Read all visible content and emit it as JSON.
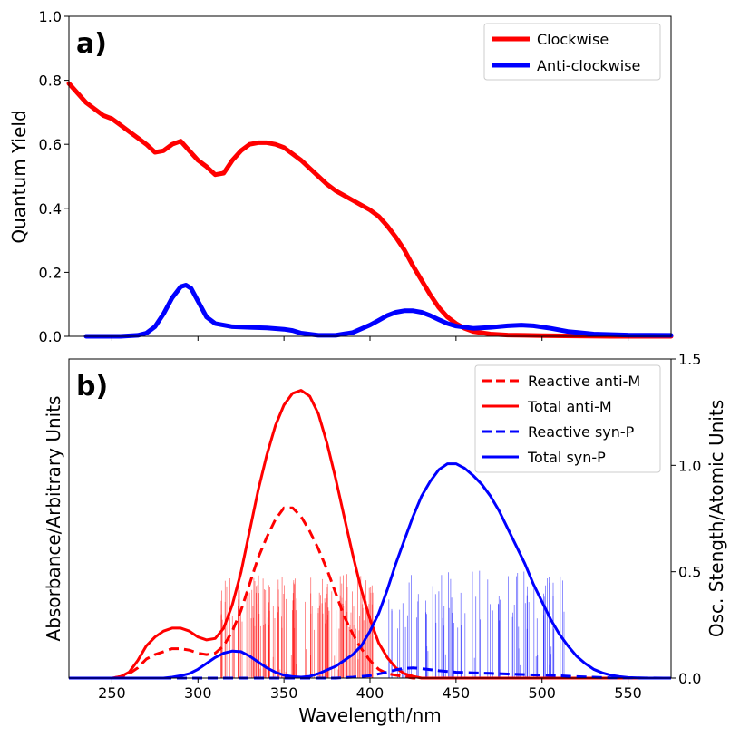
{
  "chart_data": [
    {
      "type": "line",
      "panel_label": "a)",
      "xlabel": "",
      "ylabel": "Quantum Yield",
      "xlim": [
        225,
        575
      ],
      "ylim": [
        0.0,
        1.0
      ],
      "xticks": [
        250,
        300,
        350,
        400,
        450,
        500,
        550
      ],
      "yticks": [
        "0.0",
        "0.2",
        "0.4",
        "0.6",
        "0.8",
        "1.0"
      ],
      "legend_position": "top-right",
      "series": [
        {
          "name": "Clockwise",
          "color": "#ff0000",
          "x": [
            225,
            230,
            235,
            240,
            245,
            250,
            255,
            260,
            265,
            270,
            275,
            280,
            285,
            290,
            295,
            300,
            305,
            310,
            315,
            320,
            325,
            330,
            335,
            340,
            345,
            350,
            355,
            360,
            365,
            370,
            375,
            380,
            385,
            390,
            395,
            400,
            405,
            410,
            415,
            420,
            425,
            430,
            435,
            440,
            445,
            450,
            455,
            460,
            470,
            480,
            490,
            500,
            520,
            540,
            560,
            575
          ],
          "y": [
            0.79,
            0.76,
            0.73,
            0.71,
            0.69,
            0.68,
            0.66,
            0.64,
            0.62,
            0.6,
            0.575,
            0.58,
            0.6,
            0.61,
            0.58,
            0.55,
            0.53,
            0.505,
            0.51,
            0.55,
            0.58,
            0.6,
            0.605,
            0.605,
            0.6,
            0.59,
            0.57,
            0.55,
            0.525,
            0.5,
            0.475,
            0.455,
            0.44,
            0.425,
            0.41,
            0.395,
            0.375,
            0.345,
            0.31,
            0.27,
            0.22,
            0.175,
            0.13,
            0.09,
            0.06,
            0.04,
            0.025,
            0.015,
            0.007,
            0.004,
            0.003,
            0.002,
            0.001,
            0.0,
            0.0,
            0.0
          ]
        },
        {
          "name": "Anti-clockwise",
          "color": "#0000ff",
          "x": [
            235,
            255,
            265,
            270,
            275,
            280,
            285,
            290,
            293,
            296,
            300,
            305,
            310,
            320,
            330,
            340,
            350,
            355,
            360,
            370,
            380,
            390,
            400,
            405,
            410,
            415,
            420,
            425,
            430,
            435,
            440,
            445,
            450,
            460,
            470,
            480,
            488,
            495,
            505,
            515,
            530,
            550,
            575
          ],
          "y": [
            0.0,
            0.0,
            0.003,
            0.01,
            0.03,
            0.07,
            0.12,
            0.155,
            0.16,
            0.15,
            0.11,
            0.06,
            0.04,
            0.03,
            0.028,
            0.026,
            0.022,
            0.018,
            0.01,
            0.003,
            0.003,
            0.012,
            0.035,
            0.05,
            0.065,
            0.075,
            0.08,
            0.08,
            0.075,
            0.065,
            0.052,
            0.04,
            0.032,
            0.025,
            0.028,
            0.033,
            0.035,
            0.033,
            0.025,
            0.015,
            0.007,
            0.004,
            0.003
          ]
        }
      ]
    },
    {
      "type": "line",
      "panel_label": "b)",
      "xlabel": "Wavelength/nm",
      "ylabel": "Absorbance/Arbitrary Units",
      "y2label": "Osc. Stength/Atomic Units",
      "xlim": [
        225,
        575
      ],
      "ylim": [
        0,
        1
      ],
      "y2lim": [
        0.0,
        1.5
      ],
      "xticks": [
        250,
        300,
        350,
        400,
        450,
        500,
        550
      ],
      "y2ticks": [
        "0.0",
        "0.5",
        "1.0",
        "1.5"
      ],
      "legend_position": "top-right",
      "series": [
        {
          "name": "Reactive anti-M",
          "color": "#ff0000",
          "dashed": true,
          "x": [
            225,
            250,
            255,
            260,
            265,
            270,
            275,
            280,
            285,
            290,
            295,
            300,
            305,
            310,
            315,
            320,
            325,
            330,
            335,
            340,
            345,
            350,
            355,
            360,
            365,
            370,
            375,
            380,
            385,
            390,
            395,
            400,
            405,
            410,
            415,
            420,
            425,
            430,
            440,
            450,
            460,
            470,
            480,
            490,
            500,
            510,
            530,
            575
          ],
          "y": [
            0.0,
            0.0,
            0.005,
            0.015,
            0.035,
            0.065,
            0.08,
            0.09,
            0.1,
            0.1,
            0.095,
            0.085,
            0.08,
            0.085,
            0.11,
            0.16,
            0.23,
            0.32,
            0.41,
            0.48,
            0.54,
            0.58,
            0.58,
            0.55,
            0.5,
            0.44,
            0.37,
            0.29,
            0.21,
            0.15,
            0.1,
            0.06,
            0.03,
            0.015,
            0.01,
            0.005,
            0.0,
            0.0,
            0.0,
            0.0,
            0.0,
            0.0,
            0.0,
            0.0,
            0.0,
            0.0,
            0.0,
            0.0
          ]
        },
        {
          "name": "Total anti-M",
          "color": "#ff0000",
          "dashed": false,
          "x": [
            225,
            250,
            255,
            260,
            265,
            270,
            275,
            280,
            285,
            290,
            295,
            300,
            305,
            310,
            315,
            320,
            325,
            330,
            335,
            340,
            345,
            350,
            355,
            360,
            365,
            370,
            375,
            380,
            385,
            390,
            395,
            400,
            405,
            410,
            415,
            420,
            425,
            430,
            440,
            450,
            460,
            470,
            480,
            490,
            510,
            575
          ],
          "y": [
            0.0,
            0.0,
            0.005,
            0.02,
            0.06,
            0.11,
            0.14,
            0.16,
            0.17,
            0.17,
            0.16,
            0.14,
            0.13,
            0.135,
            0.17,
            0.25,
            0.36,
            0.5,
            0.64,
            0.76,
            0.86,
            0.93,
            0.97,
            0.98,
            0.96,
            0.9,
            0.8,
            0.68,
            0.55,
            0.42,
            0.3,
            0.2,
            0.12,
            0.07,
            0.035,
            0.015,
            0.006,
            0.0,
            0.0,
            0.0,
            0.0,
            0.0,
            0.0,
            0.0,
            0.0,
            0.0
          ]
        },
        {
          "name": "Reactive syn-P",
          "color": "#0000ff",
          "dashed": true,
          "x": [
            225,
            380,
            390,
            400,
            410,
            415,
            420,
            425,
            430,
            440,
            450,
            460,
            470,
            480,
            490,
            500,
            510,
            520,
            530,
            540,
            575
          ],
          "y": [
            0.0,
            0.0,
            0.003,
            0.008,
            0.02,
            0.028,
            0.033,
            0.035,
            0.032,
            0.025,
            0.02,
            0.018,
            0.016,
            0.014,
            0.012,
            0.01,
            0.008,
            0.005,
            0.003,
            0.001,
            0.0
          ]
        },
        {
          "name": "Total syn-P",
          "color": "#0000ff",
          "dashed": false,
          "x": [
            225,
            280,
            285,
            290,
            295,
            300,
            305,
            310,
            315,
            320,
            325,
            330,
            335,
            340,
            345,
            350,
            355,
            360,
            365,
            370,
            380,
            390,
            395,
            400,
            405,
            410,
            415,
            420,
            425,
            430,
            435,
            440,
            445,
            450,
            455,
            460,
            465,
            470,
            475,
            480,
            485,
            490,
            495,
            500,
            505,
            510,
            515,
            520,
            525,
            530,
            535,
            540,
            545,
            550,
            560,
            575
          ],
          "y": [
            0.0,
            0.0,
            0.003,
            0.008,
            0.015,
            0.03,
            0.05,
            0.07,
            0.085,
            0.092,
            0.09,
            0.075,
            0.055,
            0.035,
            0.02,
            0.01,
            0.005,
            0.003,
            0.006,
            0.015,
            0.04,
            0.08,
            0.11,
            0.16,
            0.22,
            0.3,
            0.39,
            0.47,
            0.55,
            0.62,
            0.67,
            0.71,
            0.73,
            0.73,
            0.715,
            0.69,
            0.66,
            0.62,
            0.57,
            0.51,
            0.45,
            0.39,
            0.32,
            0.26,
            0.2,
            0.15,
            0.11,
            0.075,
            0.05,
            0.03,
            0.018,
            0.01,
            0.005,
            0.002,
            0.0,
            0.0
          ]
        }
      ],
      "sticks": [
        {
          "name": "anti-M oscillator strengths",
          "color": "#ff0000",
          "range": [
            313,
            402
          ],
          "count": 160,
          "max_strength": 0.49
        },
        {
          "name": "syn-P oscillator strengths",
          "color": "#0000ff",
          "range": [
            410,
            513
          ],
          "count": 90,
          "max_strength": 0.51
        }
      ]
    }
  ]
}
